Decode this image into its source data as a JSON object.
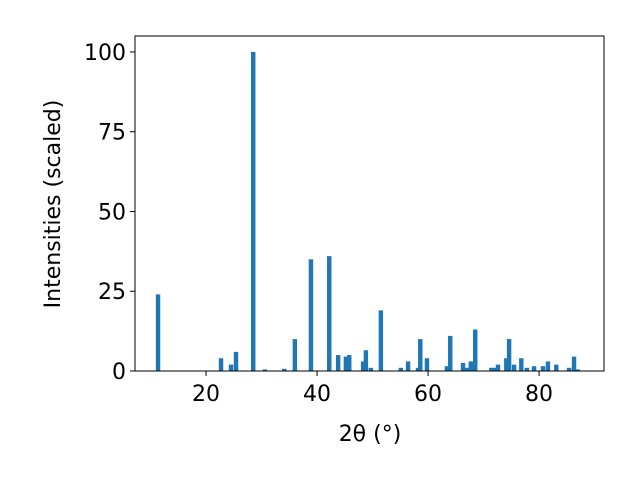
{
  "chart_data": {
    "type": "bar",
    "xlabel": "2θ (°)",
    "ylabel": "Intensities (scaled)",
    "x": [
      11.35,
      22.7,
      24.5,
      25.4,
      28.5,
      30.6,
      34.1,
      36.0,
      38.9,
      42.2,
      43.8,
      45.2,
      45.8,
      48.3,
      48.8,
      49.7,
      51.5,
      55.1,
      56.4,
      58.2,
      58.6,
      59.8,
      63.4,
      64.0,
      66.3,
      67.0,
      67.7,
      68.5,
      71.4,
      71.9,
      72.6,
      74.1,
      74.6,
      75.5,
      76.8,
      77.8,
      79.1,
      80.7,
      81.6,
      83.1,
      85.4,
      86.3,
      87.0
    ],
    "values": [
      24,
      4,
      2,
      6,
      100,
      0.5,
      0.7,
      10,
      35,
      36,
      5,
      4.5,
      5,
      3,
      6.5,
      1,
      19,
      1,
      3,
      1,
      10,
      4,
      1.5,
      11,
      2.5,
      1,
      3,
      13,
      1,
      1,
      2,
      4,
      10,
      2,
      4,
      1,
      1.5,
      1.5,
      3,
      2,
      1,
      4.5,
      0.5
    ],
    "color": "#1f77b4",
    "xlim": [
      7.2,
      91.7
    ],
    "ylim": [
      0,
      105
    ],
    "xticks": [
      20,
      40,
      60,
      80
    ],
    "yticks": [
      0,
      25,
      50,
      75,
      100
    ]
  }
}
